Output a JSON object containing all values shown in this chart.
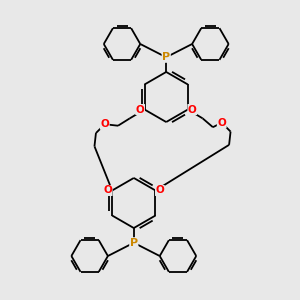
{
  "bg_color": "#e8e8e8",
  "bond_color": "#000000",
  "o_color": "#ff0000",
  "p_color": "#cc8800",
  "lw": 1.3,
  "figsize": [
    3.0,
    3.0
  ],
  "dpi": 100,
  "xlim": [
    -4.5,
    4.5
  ],
  "ylim": [
    -5.0,
    5.0
  ],
  "ring_r": 0.85,
  "ph_r": 0.62,
  "dbo": 0.12
}
